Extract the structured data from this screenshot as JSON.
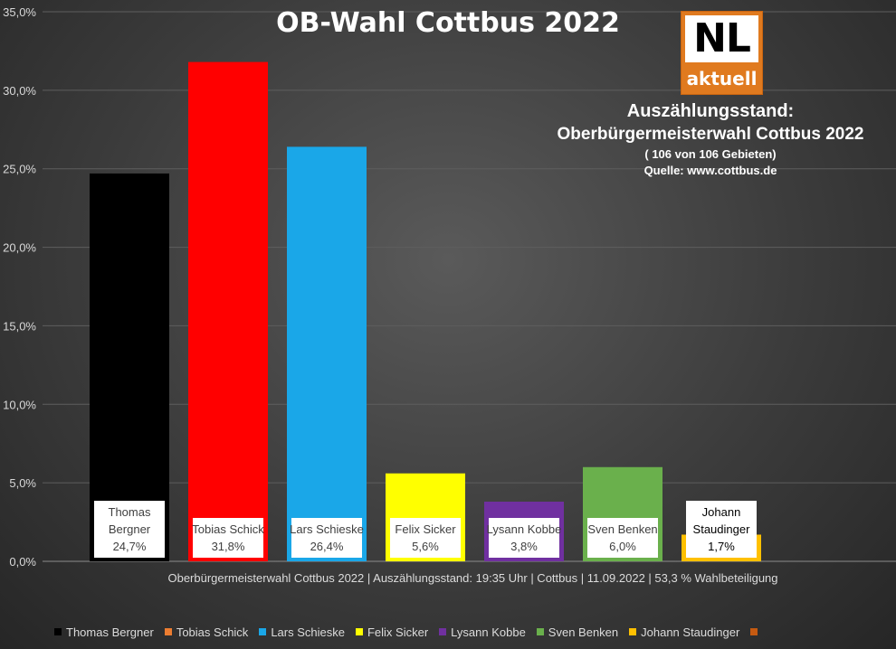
{
  "chart_data": {
    "type": "bar",
    "title": "OB-Wahl Cottbus 2022",
    "ylim": [
      0,
      35
    ],
    "yticks": [
      "0,0%",
      "5,0%",
      "10,0%",
      "15,0%",
      "20,0%",
      "25,0%",
      "30,0%",
      "35,0%"
    ],
    "categories": [
      "Thomas Bergner",
      "Tobias Schick",
      "Lars Schieske",
      "Felix Sicker",
      "Lysann Kobbe",
      "Sven Benken",
      "Johann Staudinger"
    ],
    "values": [
      24.7,
      31.8,
      26.4,
      5.6,
      3.8,
      6.0,
      1.7
    ],
    "bar_labels": [
      [
        "Thomas",
        "Bergner",
        "24,7%"
      ],
      [
        "Tobias Schick",
        "31,8%"
      ],
      [
        "Lars Schieske",
        "26,4%"
      ],
      [
        "Felix Sicker",
        "5,6%"
      ],
      [
        "Lysann Kobbe",
        "3,8%"
      ],
      [
        "Sven Benken",
        "6,0%"
      ],
      [
        "Johann",
        "Staudinger",
        "1,7%"
      ]
    ],
    "colors": [
      "#000000",
      "#ff0000",
      "#1aa7e8",
      "#ffff00",
      "#7030a0",
      "#6ab04c",
      "#ffc000"
    ],
    "legend_colors": [
      "#000000",
      "#ed7d31",
      "#1aa7e8",
      "#ffff00",
      "#7030a0",
      "#6ab04c",
      "#ffc000",
      "#c55a11"
    ],
    "legend": [
      "Thomas Bergner",
      "Tobias Schick",
      "Lars Schieske",
      "Felix Sicker",
      "Lysann Kobbe",
      "Sven Benken",
      "Johann Staudinger",
      ""
    ],
    "legend_position": "bottom",
    "grid": true
  },
  "logo": {
    "top": "NL",
    "bottom": "aktuell"
  },
  "info": {
    "line1": "Auszählungsstand:",
    "line2": "Oberbürgermeisterwahl Cottbus 2022",
    "line3": "( 106 von 106 Gebieten)",
    "line4": "Quelle: www.cottbus.de"
  },
  "footer": "Oberbürgermeisterwahl Cottbus 2022 | Auszählungsstand: 19:35 Uhr | Cottbus | 11.09.2022 | 53,3 % Wahlbeteiligung"
}
